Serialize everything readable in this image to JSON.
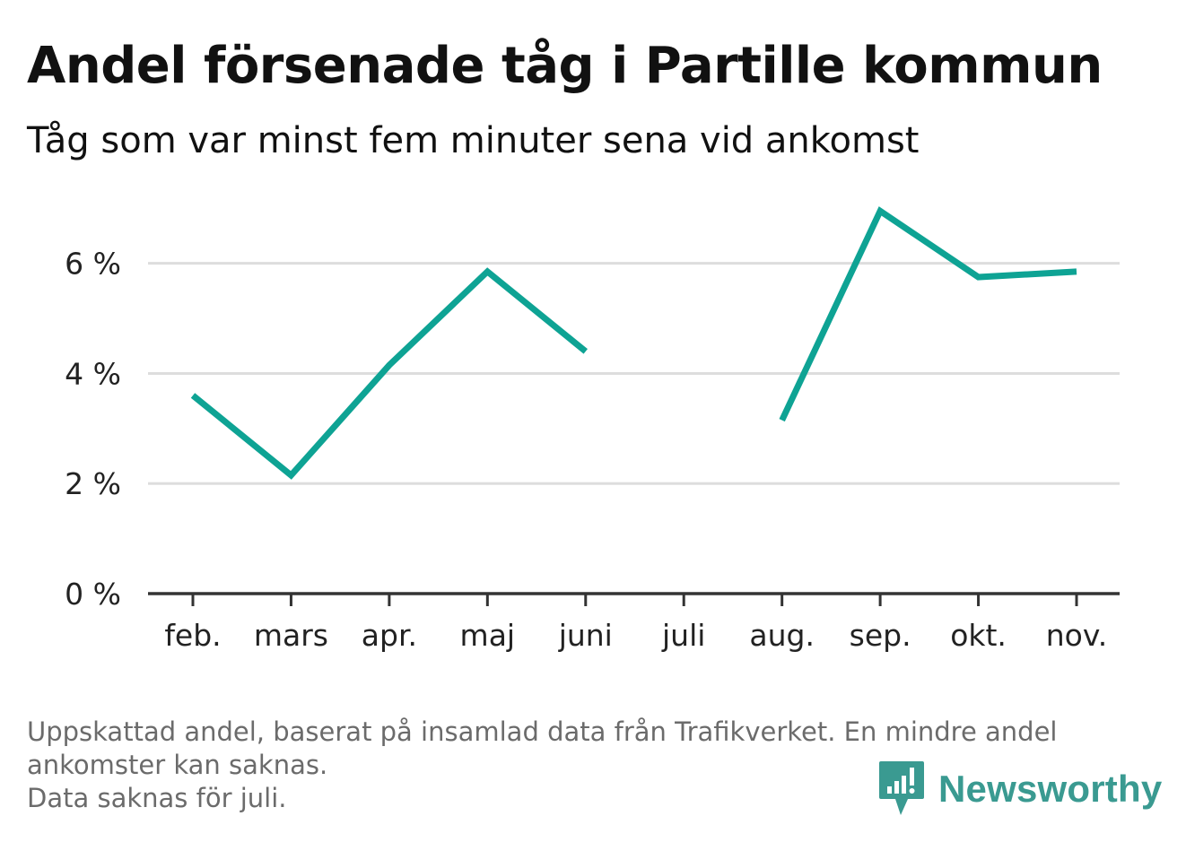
{
  "header": {
    "title": "Andel försenade tåg i Partille kommun",
    "subtitle": "Tåg som var minst fem minuter sena vid ankomst"
  },
  "chart_data": {
    "type": "line",
    "title": "Andel försenade tåg i Partille kommun",
    "subtitle": "Tåg som var minst fem minuter sena vid ankomst",
    "xlabel": "",
    "ylabel": "",
    "categories": [
      "feb.",
      "mars",
      "apr.",
      "maj",
      "juni",
      "juli",
      "aug.",
      "sep.",
      "okt.",
      "nov."
    ],
    "series": [
      {
        "values": [
          3.6,
          2.15,
          4.15,
          5.85,
          4.4,
          null,
          3.15,
          6.95,
          5.75,
          5.85
        ],
        "color": "#0ea394"
      }
    ],
    "ylim": [
      0,
      7.2
    ],
    "yticks": [
      0,
      2,
      4,
      6
    ],
    "ytick_labels": [
      "0 %",
      "2 %",
      "4 %",
      "6 %"
    ],
    "grid": true,
    "legend": "none"
  },
  "footnote": {
    "lines": [
      "Uppskattad andel, baserat på insamlad data från Trafikverket. En mindre andel",
      "ankomster kan saknas.",
      "Data saknas för juli."
    ]
  },
  "brand": {
    "name": "Newsworthy",
    "icon": "bar-chart-speech-bubble-icon",
    "color": "#3a9a91"
  },
  "colors": {
    "line": "#0ea394",
    "grid": "#dddddd",
    "axis": "#333333",
    "footnote": "#6b6b6b"
  }
}
